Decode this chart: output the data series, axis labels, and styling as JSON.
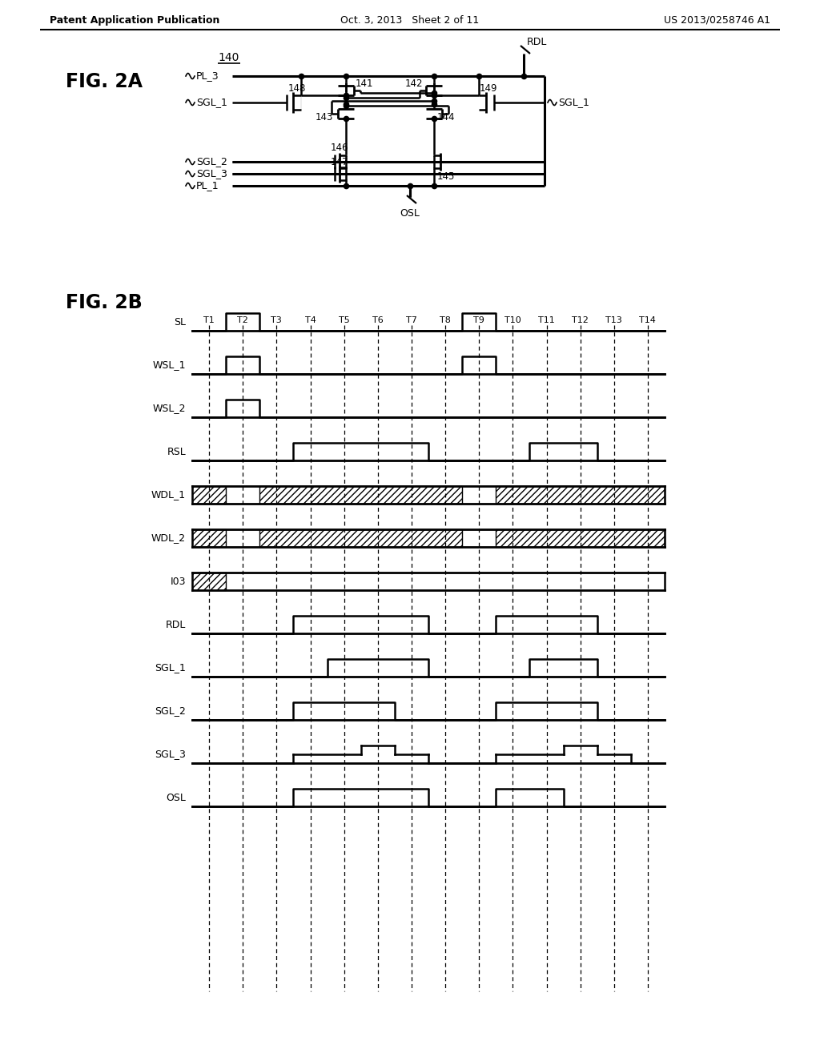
{
  "header_left": "Patent Application Publication",
  "header_mid": "Oct. 3, 2013   Sheet 2 of 11",
  "header_right": "US 2013/0258746 A1",
  "fig2a_label": "FIG. 2A",
  "fig2b_label": "FIG. 2B",
  "timing_signals": [
    "SL",
    "WSL_1",
    "WSL_2",
    "RSL",
    "WDL_1",
    "WDL_2",
    "I03",
    "RDL",
    "SGL_1",
    "SGL_2",
    "SGL_3",
    "OSL"
  ],
  "time_labels": [
    "T1",
    "T2",
    "T3",
    "T4",
    "T5",
    "T6",
    "T7",
    "T8",
    "T9",
    "T10",
    "T11",
    "T12",
    "T13",
    "T14"
  ],
  "bg_color": "#ffffff"
}
